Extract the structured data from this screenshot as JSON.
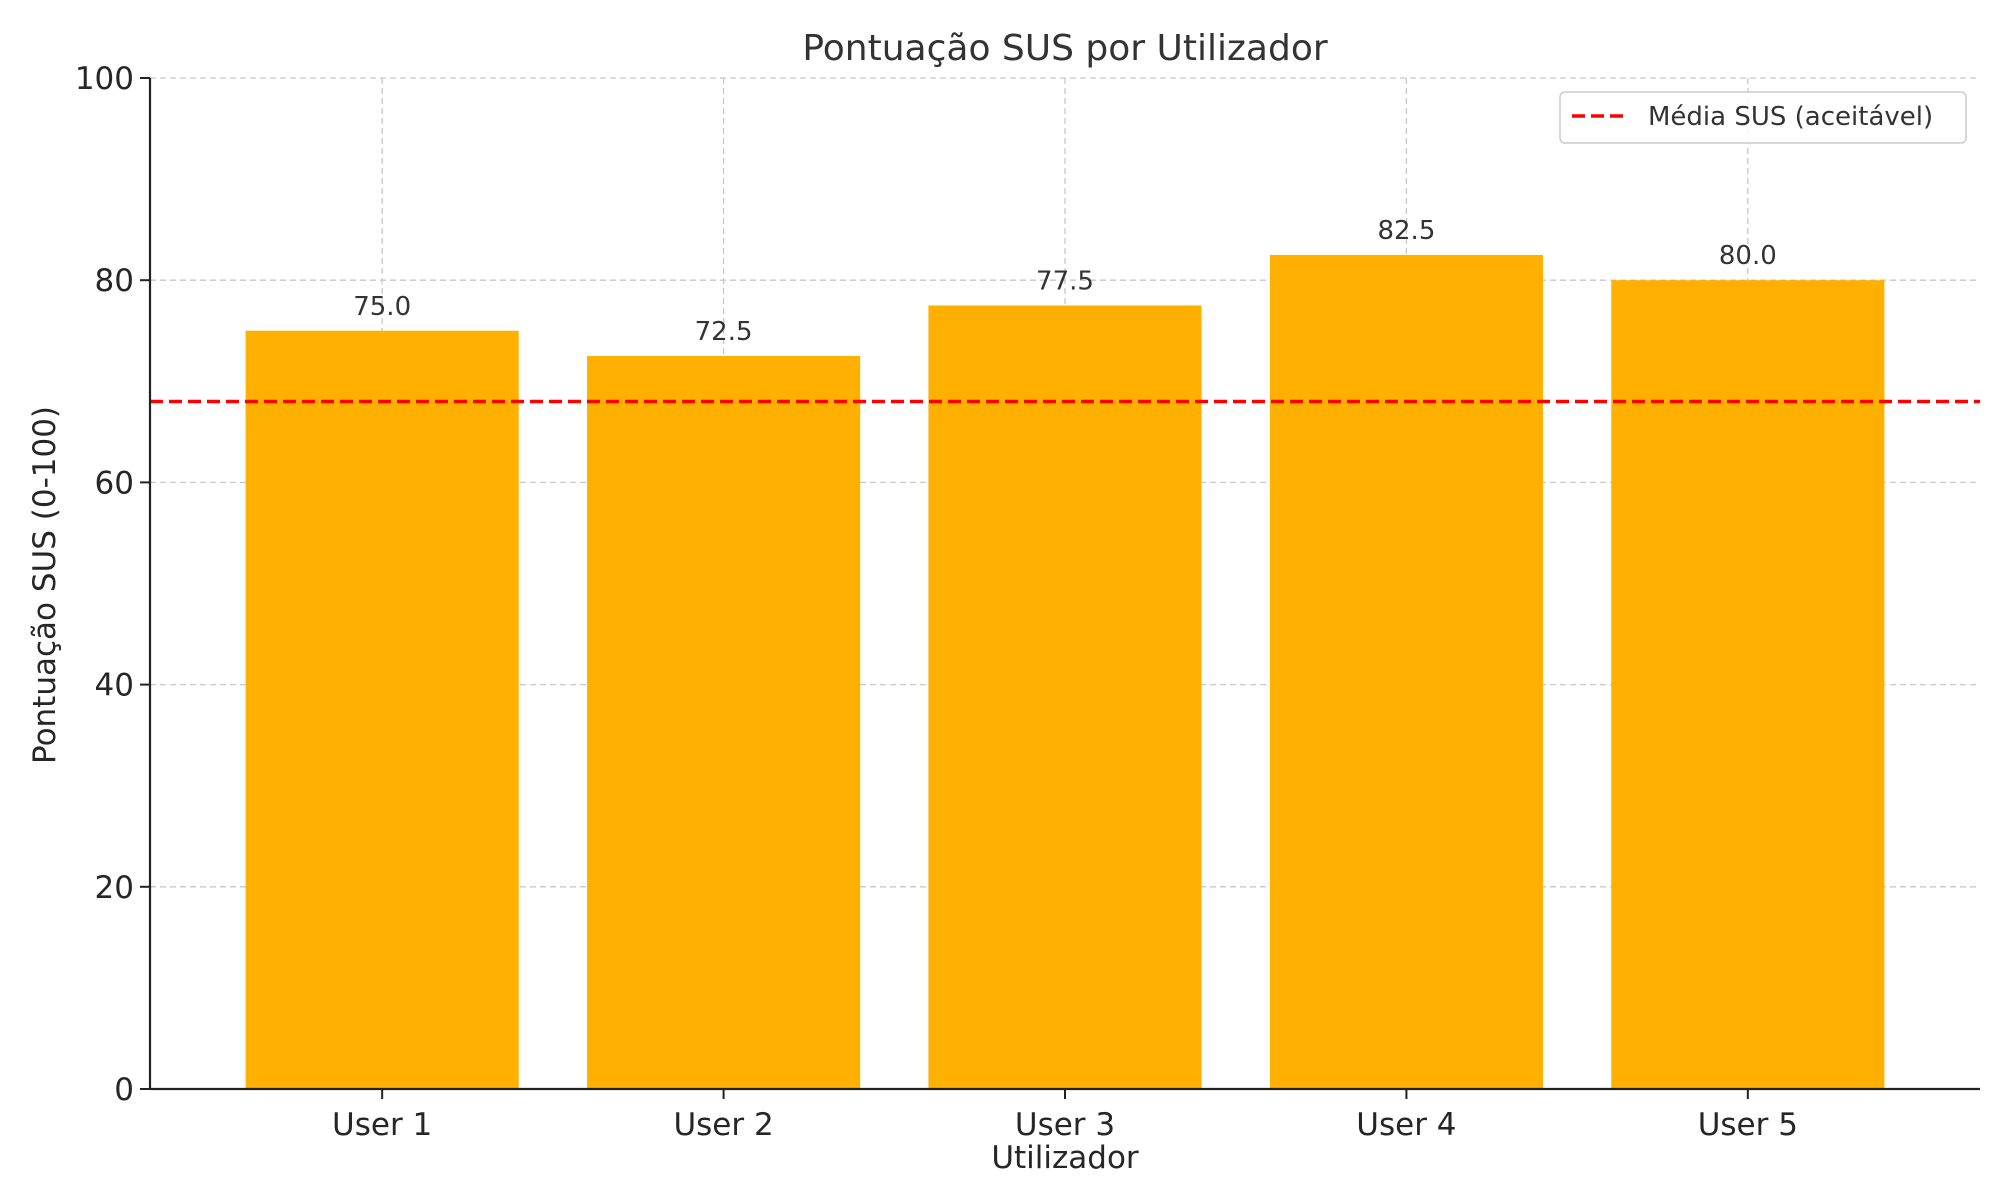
{
  "chart_data": {
    "type": "bar",
    "title": "Pontuação SUS por Utilizador",
    "xlabel": "Utilizador",
    "ylabel": "Pontuação SUS (0-100)",
    "categories": [
      "User 1",
      "User 2",
      "User 3",
      "User 4",
      "User 5"
    ],
    "values": [
      75.0,
      72.5,
      77.5,
      82.5,
      80.0
    ],
    "data_labels": [
      "75.0",
      "72.5",
      "77.5",
      "82.5",
      "80.0"
    ],
    "ylim": [
      0,
      100
    ],
    "yticks": [
      0,
      20,
      40,
      60,
      80,
      100
    ],
    "grid": true,
    "bar_color": "#FFB000",
    "reference_line": {
      "label": "Média SUS (aceitável)",
      "value": 68,
      "color": "#FF0000",
      "style": "dashed"
    },
    "legend": {
      "placement": "top-right",
      "entries": [
        "Média SUS (aceitável)"
      ]
    }
  }
}
